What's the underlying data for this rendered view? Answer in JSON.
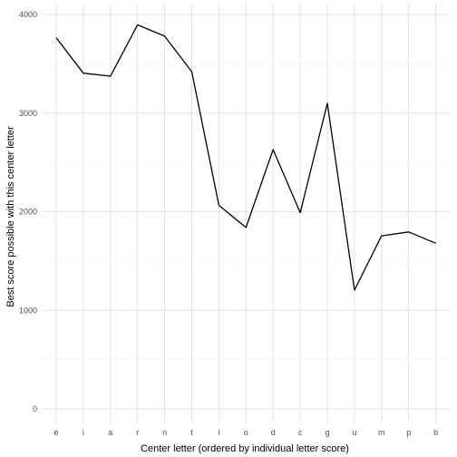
{
  "chart_data": {
    "type": "line",
    "title": "",
    "xlabel": "Center letter (ordered by individual letter score)",
    "ylabel": "Best score possible with this center letter",
    "categories": [
      "e",
      "i",
      "a",
      "r",
      "n",
      "t",
      "l",
      "o",
      "d",
      "c",
      "g",
      "u",
      "m",
      "p",
      "b"
    ],
    "values": [
      3765,
      3405,
      3375,
      3895,
      3780,
      3420,
      2065,
      1840,
      2630,
      1990,
      3100,
      1205,
      1755,
      1795,
      1680
    ],
    "ylim": [
      -130,
      4060
    ],
    "yticks": [
      0,
      1000,
      2000,
      3000,
      4000
    ],
    "grid": true,
    "colors": {
      "line": "#000000",
      "grid_major": "#dcdcdc",
      "grid_minor": "#f0f0f0",
      "tick_text": "#4d4d4d"
    }
  }
}
